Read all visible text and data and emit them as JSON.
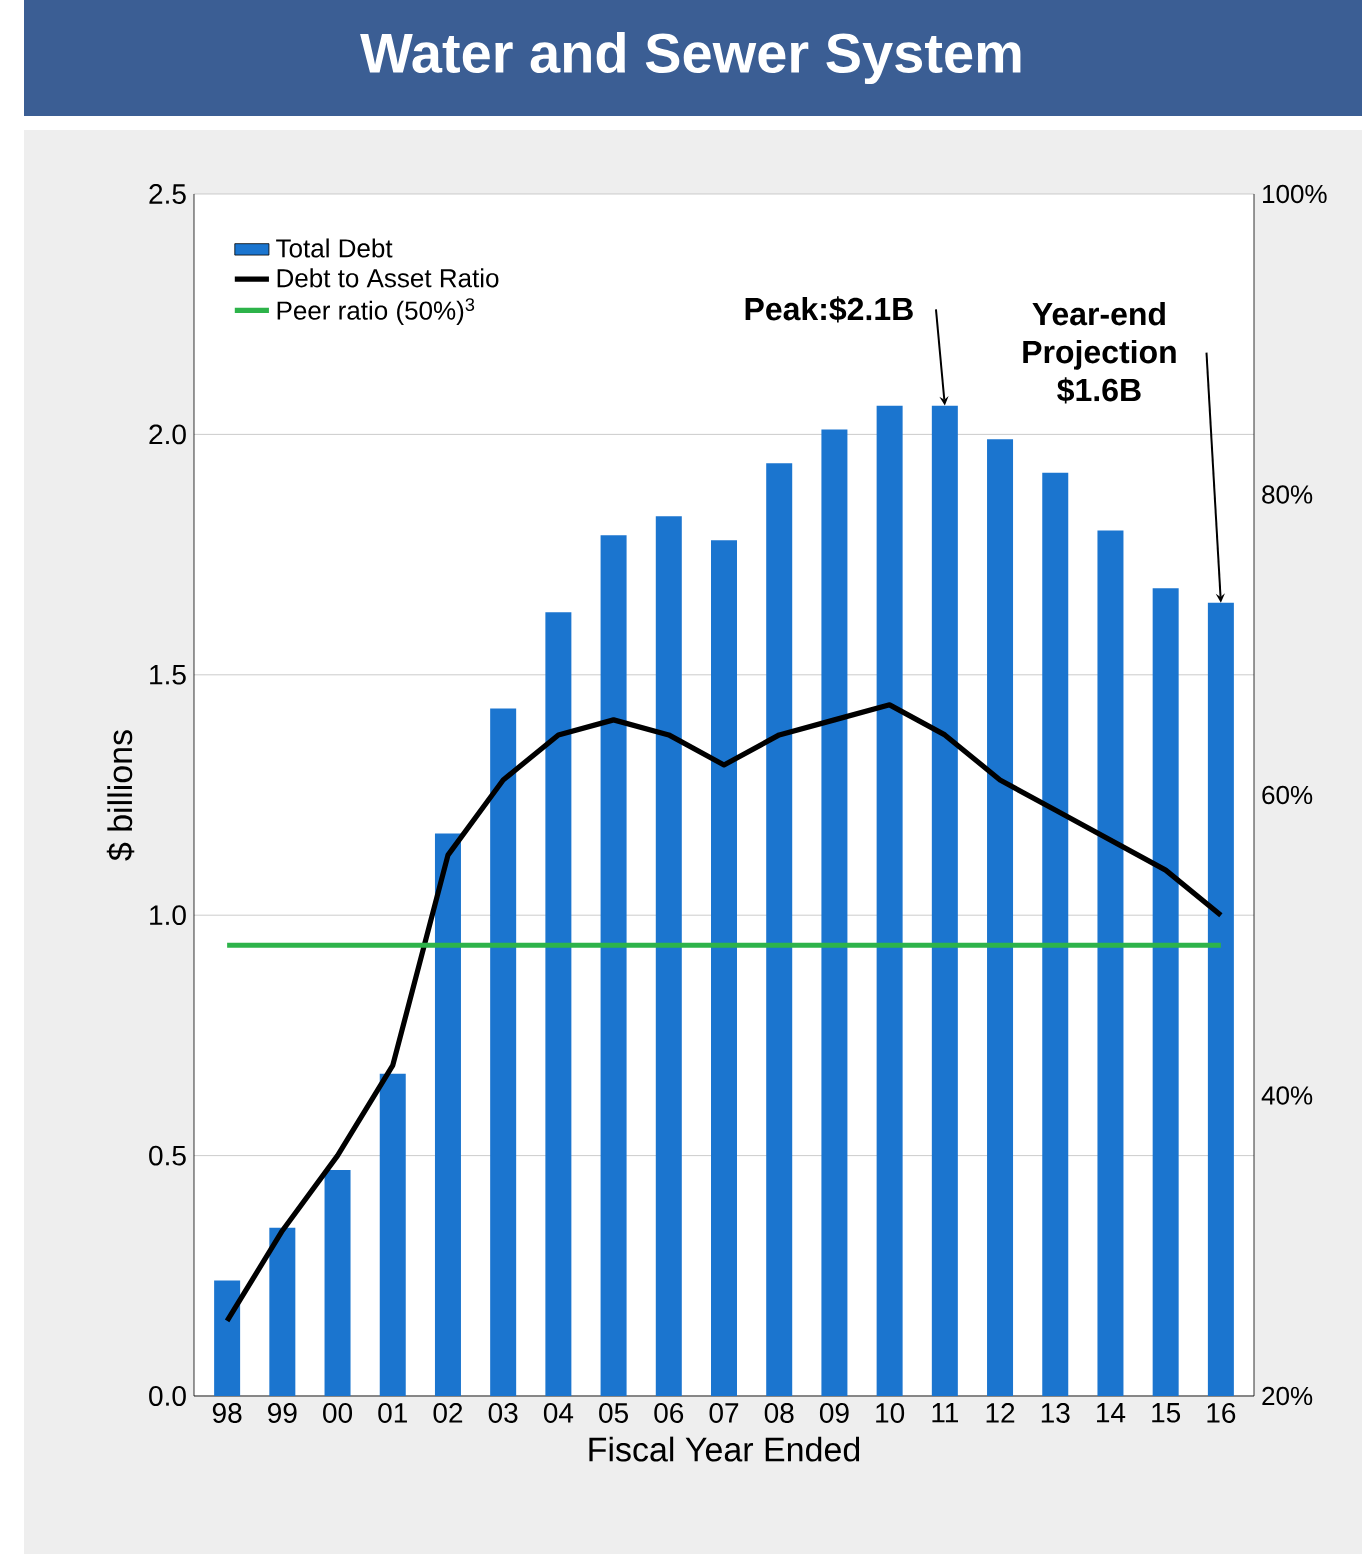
{
  "chart_data": {
    "type": "bar",
    "title": "Water and Sewer System",
    "xlabel": "Fiscal Year Ended",
    "ylabel": "$ billions",
    "categories": [
      "98",
      "99",
      "00",
      "01",
      "02",
      "03",
      "04",
      "05",
      "06",
      "07",
      "08",
      "09",
      "10",
      "11",
      "12",
      "13",
      "14",
      "15",
      "16"
    ],
    "series": [
      {
        "name": "Total Debt",
        "color": "#1b75cf",
        "values": [
          0.24,
          0.35,
          0.47,
          0.67,
          1.17,
          1.43,
          1.63,
          1.79,
          1.83,
          1.78,
          1.94,
          2.01,
          2.06,
          2.06,
          1.99,
          1.92,
          1.8,
          1.68,
          1.65
        ]
      },
      {
        "name": "Debt to Asset Ratio",
        "type": "line",
        "axis": "y2",
        "color": "#000000",
        "values": [
          25,
          31,
          36,
          42,
          56,
          61,
          64,
          65,
          64,
          62,
          64,
          65,
          66,
          64,
          61,
          59,
          57,
          55,
          52
        ]
      },
      {
        "name": "Peer ratio (50%)$^{3}$",
        "type": "line",
        "axis": "y2",
        "color": "#2db34a",
        "values": [
          50,
          50,
          50,
          50,
          50,
          50,
          50,
          50,
          50,
          50,
          50,
          50,
          50,
          50,
          50,
          50,
          50,
          50,
          50
        ]
      }
    ],
    "ylim": [
      0,
      2.5
    ],
    "yticks": [
      {
        "value": 0,
        "label": "0.0"
      },
      {
        "value": 0.5,
        "label": "0.5"
      },
      {
        "value": 1,
        "label": "1.0"
      },
      {
        "value": 1.5,
        "label": "1.5"
      },
      {
        "value": 2,
        "label": "2.0"
      },
      {
        "value": 2.5,
        "label": "2.5"
      }
    ],
    "y2lim": [
      20,
      100
    ],
    "y2ticks": [
      {
        "value": 20,
        "label": "20%"
      },
      {
        "value": 40,
        "label": "40%"
      },
      {
        "value": 60,
        "label": "60%"
      },
      {
        "value": 80,
        "label": "80%"
      },
      {
        "value": 100,
        "label": "100%"
      }
    ],
    "grid": "y",
    "legend": "top left",
    "marker": "none",
    "line_style": "solid",
    "annotations": [
      {
        "text": "Peak:$2.1B",
        "x": "11",
        "y": 2.06
      },
      {
        "text": "Year-end Projection $1.6B",
        "x": "16",
        "y": 1.65
      }
    ]
  }
}
